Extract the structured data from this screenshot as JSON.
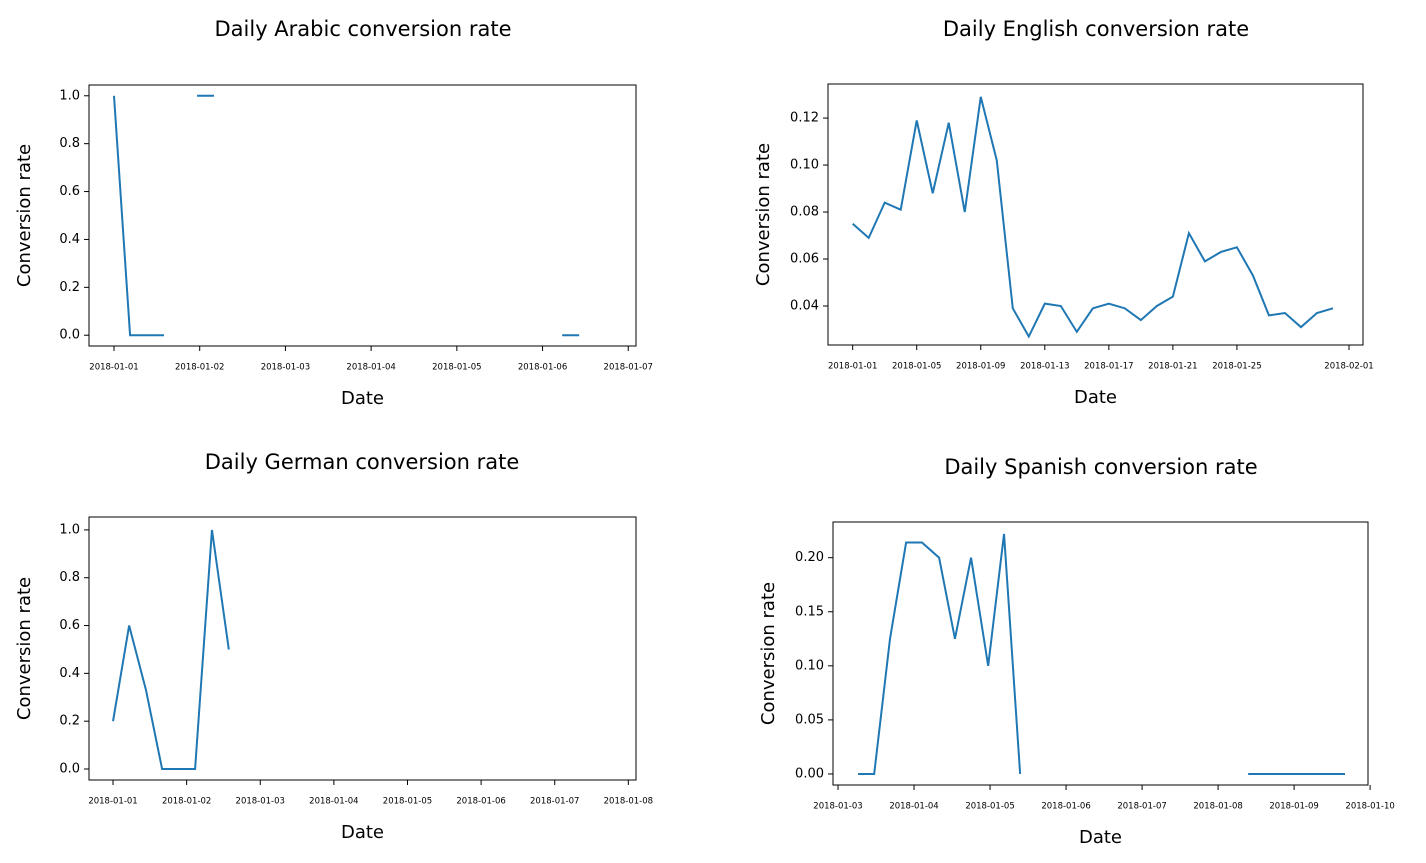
{
  "chart_data": [
    {
      "type": "line",
      "title": "Daily Arabic conversion rate",
      "xlabel": "Date",
      "ylabel": "Conversion rate",
      "color": "#1f77b4",
      "x": [
        "2018-01-01 00:00",
        "2018-01-01 04:30",
        "2018-01-01 09:00",
        "2018-01-01 14:00",
        "2018-01-01 18:30",
        "2018-01-01 23:15",
        "2018-01-02 04:00",
        "2018-01-03 00:00",
        "2018-01-06 05:30",
        "2018-01-06 10:15"
      ],
      "values": [
        1.0,
        0,
        0,
        0,
        null,
        1.0,
        1.0,
        null,
        0,
        0
      ],
      "xlim": [
        "2017-12-31 17:00",
        "2018-01-07 02:10"
      ],
      "xticks": [
        "2018-01-01",
        "2018-01-02",
        "2018-01-03",
        "2018-01-04",
        "2018-01-05",
        "2018-01-06",
        "2018-01-07"
      ],
      "ylim": [
        -0.045,
        1.045
      ],
      "yticks": [
        {
          "value": 0,
          "label": "0.0"
        },
        0.2,
        0.4,
        0.6,
        0.8,
        {
          "value": 1,
          "label": "1.0"
        }
      ]
    },
    {
      "type": "line",
      "title": "Daily English conversion rate",
      "xlabel": "Date",
      "ylabel": "Conversion rate",
      "color": "#1f77b4",
      "x": [
        "2018-01-01",
        "2018-01-02",
        "2018-01-03",
        "2018-01-04",
        "2018-01-05",
        "2018-01-06",
        "2018-01-07",
        "2018-01-08",
        "2018-01-09",
        "2018-01-10",
        "2018-01-11",
        "2018-01-12",
        "2018-01-13",
        "2018-01-14",
        "2018-01-15",
        "2018-01-16",
        "2018-01-17",
        "2018-01-18",
        "2018-01-19",
        "2018-01-20",
        "2018-01-21",
        "2018-01-22",
        "2018-01-23",
        "2018-01-24",
        "2018-01-25",
        "2018-01-26",
        "2018-01-27",
        "2018-01-28",
        "2018-01-29",
        "2018-01-30",
        "2018-01-31"
      ],
      "values": [
        0.075,
        0.069,
        0.084,
        0.081,
        0.119,
        0.088,
        0.118,
        0.08,
        0.129,
        0.102,
        0.039,
        0.027,
        0.041,
        0.04,
        0.029,
        0.039,
        0.041,
        0.039,
        0.034,
        0.04,
        0.044,
        0.071,
        0.059,
        0.063,
        0.065,
        0.053,
        0.036,
        0.037,
        0.031,
        0.037,
        0.039
      ],
      "xlim": [
        "2017-12-30 11:00",
        "2018-02-01 21:00"
      ],
      "xticks": [
        "2018-01-01",
        "2018-01-05",
        "2018-01-09",
        "2018-01-13",
        "2018-01-17",
        "2018-01-21",
        "2018-01-25",
        "2018-02-01"
      ],
      "ylim": [
        0.0234,
        0.1345
      ],
      "yticks": [
        0.04,
        0.06,
        0.08,
        {
          "value": 0.1,
          "label": "0.10"
        },
        0.12
      ]
    },
    {
      "type": "line",
      "title": "Daily German conversion rate",
      "xlabel": "Date",
      "ylabel": "Conversion rate",
      "color": "#1f77b4",
      "x": [
        "2018-01-01 00:00",
        "2018-01-01 05:15",
        "2018-01-01 10:45",
        "2018-01-01 16:00",
        "2018-01-01 21:30",
        "2018-01-02 02:45",
        "2018-01-02 08:15",
        "2018-01-02 13:45"
      ],
      "values": [
        0.2,
        0.6,
        0.33,
        0,
        0,
        0,
        1.0,
        0.5
      ],
      "xlim": [
        "2017-12-31 16:10",
        "2018-01-08 02:30"
      ],
      "xticks": [
        "2018-01-01",
        "2018-01-02",
        "2018-01-03",
        "2018-01-04",
        "2018-01-05",
        "2018-01-06",
        "2018-01-07",
        "2018-01-08"
      ],
      "ylim": [
        -0.046,
        1.054
      ],
      "yticks": [
        {
          "value": 0,
          "label": "0.0"
        },
        0.2,
        0.4,
        0.6,
        0.8,
        {
          "value": 1,
          "label": "1.0"
        }
      ]
    },
    {
      "type": "line",
      "title": "Daily Spanish conversion rate",
      "xlabel": "Date",
      "ylabel": "Conversion rate",
      "color": "#1f77b4",
      "x": [
        "2018-01-03 06:20",
        "2018-01-03 11:25",
        "2018-01-03 16:25",
        "2018-01-03 21:30",
        "2018-01-04 02:30",
        "2018-01-04 07:55",
        "2018-01-04 12:55",
        "2018-01-04 18:00",
        "2018-01-04 23:25",
        "2018-01-05 04:25",
        "2018-01-05 09:30",
        "2018-01-05 15:00",
        "2018-01-08 09:30",
        "2018-01-08 14:30",
        "2018-01-08 19:55",
        "2018-01-09 01:00",
        "2018-01-09 06:00",
        "2018-01-09 11:00",
        "2018-01-09 16:05"
      ],
      "values": [
        0,
        0,
        0.125,
        0.214,
        0.214,
        0.2,
        0.125,
        0.2,
        0.1,
        0.222,
        0,
        null,
        0,
        0,
        0,
        0,
        0,
        0,
        0
      ],
      "xlim": [
        "2018-01-02 22:25",
        "2018-01-09 23:20"
      ],
      "xticks": [
        "2018-01-03",
        "2018-01-04",
        "2018-01-05",
        "2018-01-06",
        "2018-01-07",
        "2018-01-08",
        "2018-01-09",
        "2018-01-10"
      ],
      "ylim": [
        -0.0102,
        0.233
      ],
      "yticks": [
        {
          "value": 0,
          "label": "0.00"
        },
        0.05,
        {
          "value": 0.1,
          "label": "0.10"
        },
        0.15,
        {
          "value": 0.2,
          "label": "0.20"
        }
      ]
    }
  ]
}
